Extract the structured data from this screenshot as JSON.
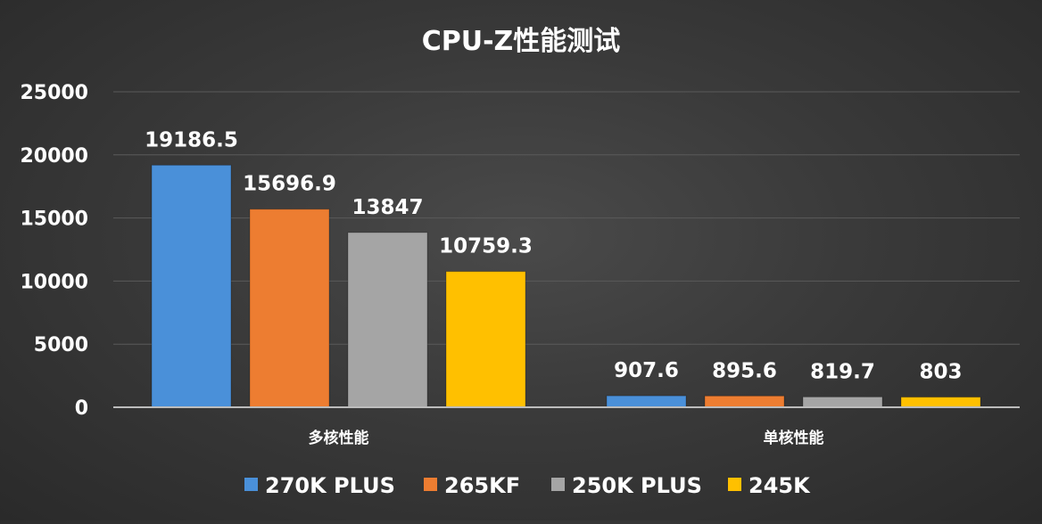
{
  "chart_data": {
    "type": "bar",
    "title": "CPU-Z性能测试",
    "categories": [
      "多核性能",
      "单核性能"
    ],
    "series": [
      {
        "name": "270K PLUS",
        "color": "#4a90d9",
        "values": [
          19186.5,
          907.6
        ],
        "labels": [
          "19186.5",
          "907.6"
        ]
      },
      {
        "name": "265KF",
        "color": "#ed7d31",
        "values": [
          15696.9,
          895.6
        ],
        "labels": [
          "15696.9",
          "895.6"
        ]
      },
      {
        "name": "250K PLUS",
        "color": "#a5a5a5",
        "values": [
          13847,
          819.7
        ],
        "labels": [
          "13847",
          "819.7"
        ]
      },
      {
        "name": "245K",
        "color": "#ffc000",
        "values": [
          10759.3,
          803
        ],
        "labels": [
          "10759.3",
          "803"
        ]
      }
    ],
    "ylim": [
      0,
      25000
    ],
    "yticks": [
      "0",
      "5000",
      "10000",
      "15000",
      "20000",
      "25000"
    ],
    "ytick_values": [
      0,
      5000,
      10000,
      15000,
      20000,
      25000
    ],
    "grid": true,
    "legend": "bottom"
  }
}
